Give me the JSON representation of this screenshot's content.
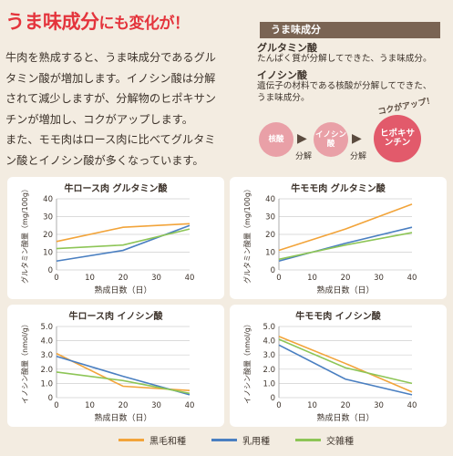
{
  "title": {
    "highlight": "うま味成分",
    "rest": "にも変化が！"
  },
  "intro": [
    "牛肉を熟成すると、うま味成分であるグル",
    "タミン酸が増加します。イノシン酸は分解",
    "されて減少しますが、分解物のヒポキサン",
    "チンが増加し、コクがアップします。",
    "また、モモ肉はロース肉に比べてグルタミ",
    "ン酸とイノシン酸が多くなっています。"
  ],
  "sidebar": {
    "heading": "うま味成分",
    "glutamic_term": "グルタミン酸",
    "glutamic_desc": "たんぱく質が分解してできた、うま味成分。",
    "inosinic_term": "イノシン酸",
    "inosinic_desc_1": "遺伝子の材料である核酸が分解してできた、",
    "inosinic_desc_2": "うま味成分。"
  },
  "flow": {
    "step1": "核酸",
    "step2": "イノシン酸",
    "step3_1": "ヒポキサ",
    "step3_2": "ンチン",
    "arrow_label": "分解",
    "koku": "コクがアップ！"
  },
  "colors": {
    "kuroge": "#f2a43a",
    "nyuyo": "#4a7fc1",
    "kozatsu": "#8dc556"
  },
  "legend": [
    "黒毛和種",
    "乳用種",
    "交雑種"
  ],
  "chart_data": [
    {
      "type": "line",
      "title": "牛ロース肉 グルタミン酸",
      "xlabel": "熟成日数（日）",
      "ylabel": "グルタミン酸量（mg/100g）",
      "x": [
        0,
        20,
        40
      ],
      "xlim": [
        0,
        40
      ],
      "ylim": [
        0,
        40
      ],
      "xticks": [
        0,
        10,
        20,
        30,
        40
      ],
      "yticks": [
        0,
        10,
        20,
        30,
        40
      ],
      "series": [
        {
          "name": "黒毛和種",
          "values": [
            16,
            24,
            26
          ]
        },
        {
          "name": "乳用種",
          "values": [
            5,
            11,
            25
          ]
        },
        {
          "name": "交雑種",
          "values": [
            12,
            14,
            23
          ]
        }
      ]
    },
    {
      "type": "line",
      "title": "牛モモ肉 グルタミン酸",
      "xlabel": "熟成日数（日）",
      "ylabel": "グルタミン酸量（mg/100g）",
      "x": [
        0,
        20,
        40
      ],
      "xlim": [
        0,
        40
      ],
      "ylim": [
        0,
        40
      ],
      "xticks": [
        0,
        10,
        20,
        30,
        40
      ],
      "yticks": [
        0,
        10,
        20,
        30,
        40
      ],
      "series": [
        {
          "name": "黒毛和種",
          "values": [
            11,
            23,
            37
          ]
        },
        {
          "name": "乳用種",
          "values": [
            5,
            15,
            24
          ]
        },
        {
          "name": "交雑種",
          "values": [
            6,
            14,
            21
          ]
        }
      ]
    },
    {
      "type": "line",
      "title": "牛ロース肉 イノシン酸",
      "xlabel": "熟成日数（日）",
      "ylabel": "イノシン酸量（nmol/g）",
      "x": [
        0,
        20,
        40
      ],
      "xlim": [
        0,
        40
      ],
      "ylim": [
        0,
        5
      ],
      "xticks": [
        0,
        10,
        20,
        30,
        40
      ],
      "yticks": [
        "0",
        "1.0",
        "2.0",
        "3.0",
        "4.0",
        "5.0"
      ],
      "series": [
        {
          "name": "黒毛和種",
          "values": [
            3.1,
            0.8,
            0.5
          ]
        },
        {
          "name": "乳用種",
          "values": [
            2.9,
            1.5,
            0.2
          ]
        },
        {
          "name": "交雑種",
          "values": [
            1.8,
            1.2,
            0.3
          ]
        }
      ]
    },
    {
      "type": "line",
      "title": "牛モモ肉 イノシン酸",
      "xlabel": "熟成日数（日）",
      "ylabel": "イノシン酸量（nmol/g）",
      "x": [
        0,
        20,
        40
      ],
      "xlim": [
        0,
        40
      ],
      "ylim": [
        0,
        5
      ],
      "xticks": [
        0,
        10,
        20,
        30,
        40
      ],
      "yticks": [
        "0",
        "1.0",
        "2.0",
        "3.0",
        "4.0",
        "5.0"
      ],
      "series": [
        {
          "name": "黒毛和種",
          "values": [
            4.3,
            2.4,
            0.4
          ]
        },
        {
          "name": "乳用種",
          "values": [
            3.7,
            1.3,
            0.2
          ]
        },
        {
          "name": "交雑種",
          "values": [
            4.1,
            2.1,
            1.0
          ]
        }
      ]
    }
  ]
}
